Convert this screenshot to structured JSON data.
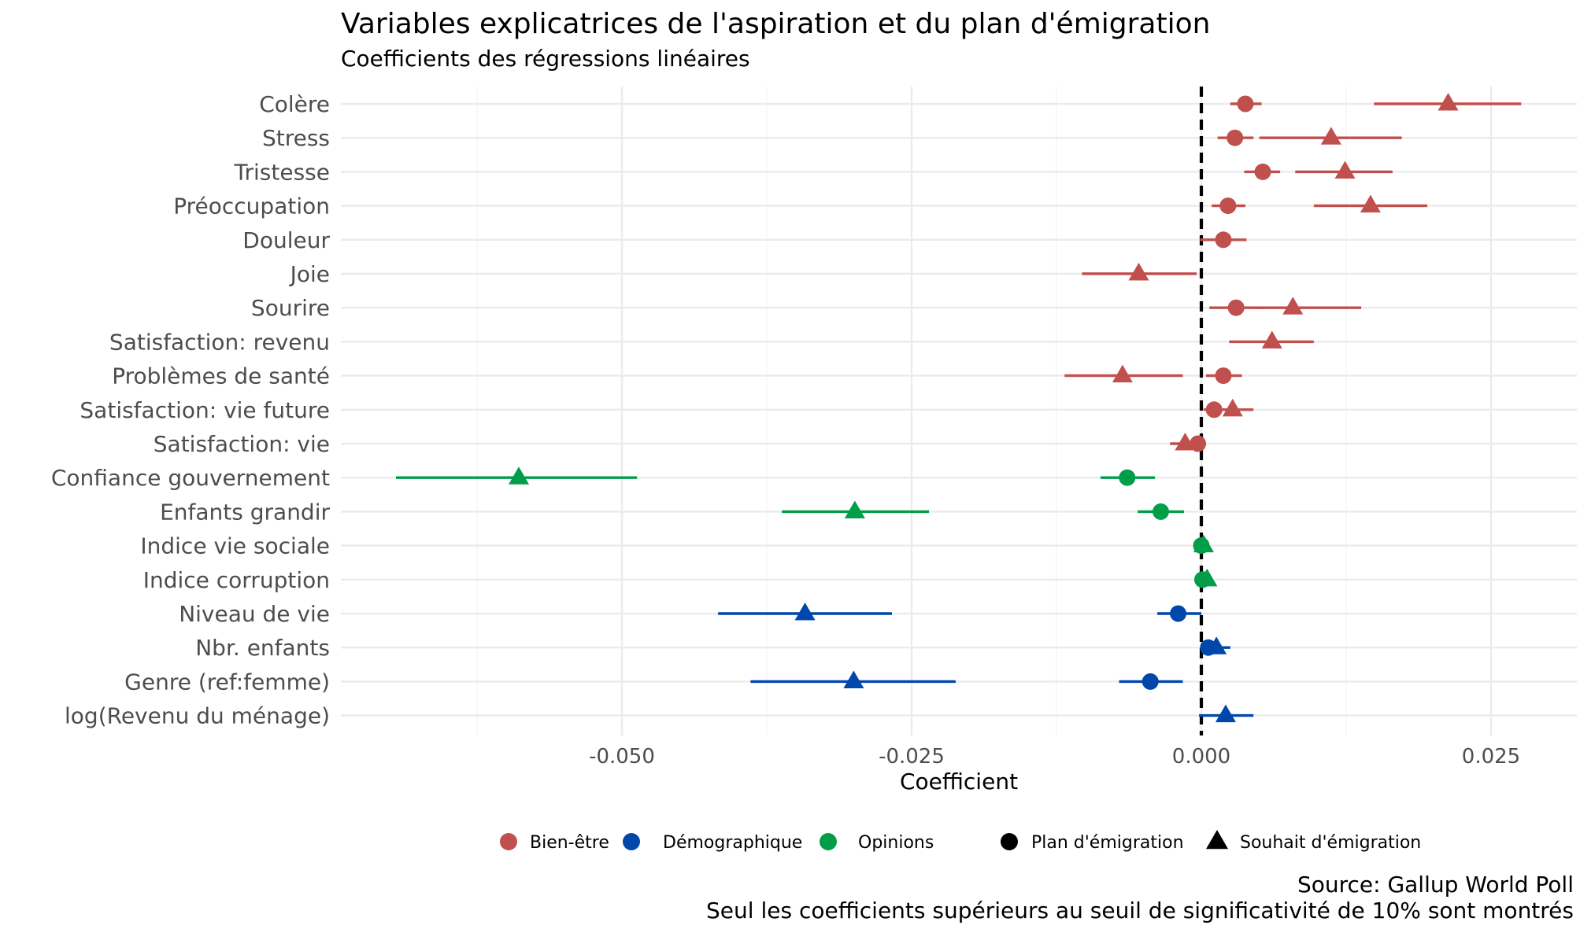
{
  "chart_data": {
    "type": "scatter",
    "subtype": "coefficient-plot",
    "title": "Variables explicatrices de l'aspiration et du plan d'émigration",
    "subtitle": "Coefficients des régressions linéaires",
    "xlabel": "Coefficient",
    "ylabel": "",
    "xlim": [
      -0.0745,
      0.033
    ],
    "xticks": [
      -0.05,
      -0.025,
      0.0,
      0.025
    ],
    "xtick_labels": [
      "-0.050",
      "-0.025",
      "0.000",
      "0.025"
    ],
    "reference_line": 0.0,
    "grid": true,
    "legend_position": "bottom",
    "categories": [
      "Colère",
      "Stress",
      "Tristesse",
      "Préoccupation",
      "Douleur",
      "Joie",
      "Sourire",
      "Satisfaction: revenu",
      "Problèmes de santé ",
      "Satisfaction: vie future",
      "Satisfaction: vie",
      "Confiance gouvernement",
      "Enfants grandir",
      "Indice vie sociale",
      "Indice corruption",
      "Niveau de vie",
      "Nbr. enfants",
      "Genre (ref:femme)",
      "log(Revenu du ménage)"
    ],
    "groups": [
      {
        "name": "Bien-être",
        "color": "#C0504D"
      },
      {
        "name": "Démographique",
        "color": "#0047AB"
      },
      {
        "name": "Opinions",
        "color": "#009E49"
      }
    ],
    "shapes": [
      {
        "name": "Plan d'émigration",
        "shape": "circle"
      },
      {
        "name": "Souhait d'émigration",
        "shape": "triangle"
      }
    ],
    "points": [
      {
        "variable": "Colère",
        "group": "Bien-être",
        "model": "Plan d'émigration",
        "estimate": 0.0038,
        "lo": 0.0025,
        "hi": 0.0052
      },
      {
        "variable": "Colère",
        "group": "Bien-être",
        "model": "Souhait d'émigration",
        "estimate": 0.0213,
        "lo": 0.0149,
        "hi": 0.0276
      },
      {
        "variable": "Stress",
        "group": "Bien-être",
        "model": "Plan d'émigration",
        "estimate": 0.0029,
        "lo": 0.0014,
        "hi": 0.0045
      },
      {
        "variable": "Stress",
        "group": "Bien-être",
        "model": "Souhait d'émigration",
        "estimate": 0.0112,
        "lo": 0.005,
        "hi": 0.0173
      },
      {
        "variable": "Tristesse",
        "group": "Bien-être",
        "model": "Plan d'émigration",
        "estimate": 0.0053,
        "lo": 0.0037,
        "hi": 0.0068
      },
      {
        "variable": "Tristesse",
        "group": "Bien-être",
        "model": "Souhait d'émigration",
        "estimate": 0.0124,
        "lo": 0.0081,
        "hi": 0.0165
      },
      {
        "variable": "Préoccupation",
        "group": "Bien-être",
        "model": "Plan d'émigration",
        "estimate": 0.0023,
        "lo": 0.0009,
        "hi": 0.0038
      },
      {
        "variable": "Préoccupation",
        "group": "Bien-être",
        "model": "Souhait d'émigration",
        "estimate": 0.0146,
        "lo": 0.0097,
        "hi": 0.0195
      },
      {
        "variable": "Douleur",
        "group": "Bien-être",
        "model": "Plan d'émigration",
        "estimate": 0.0019,
        "lo": -0.0001,
        "hi": 0.0039
      },
      {
        "variable": "Joie",
        "group": "Bien-être",
        "model": "Souhait d'émigration",
        "estimate": -0.0054,
        "lo": -0.0103,
        "hi": -0.0004
      },
      {
        "variable": "Sourire",
        "group": "Bien-être",
        "model": "Plan d'émigration",
        "estimate": 0.003,
        "lo": 0.0007,
        "hi": 0.0053
      },
      {
        "variable": "Sourire",
        "group": "Bien-être",
        "model": "Souhait d'émigration",
        "estimate": 0.0079,
        "lo": 0.0045,
        "hi": 0.0138
      },
      {
        "variable": "Satisfaction: revenu",
        "group": "Bien-être",
        "model": "Souhait d'émigration",
        "estimate": 0.0061,
        "lo": 0.0024,
        "hi": 0.0097
      },
      {
        "variable": "Problèmes de santé ",
        "group": "Bien-être",
        "model": "Plan d'émigration",
        "estimate": 0.0019,
        "lo": 0.0004,
        "hi": 0.0035
      },
      {
        "variable": "Problèmes de santé ",
        "group": "Bien-être",
        "model": "Souhait d'émigration",
        "estimate": -0.0068,
        "lo": -0.0118,
        "hi": -0.0016
      },
      {
        "variable": "Satisfaction: vie future",
        "group": "Bien-être",
        "model": "Plan d'émigration",
        "estimate": 0.0011,
        "lo": 0.0002,
        "hi": 0.002
      },
      {
        "variable": "Satisfaction: vie future",
        "group": "Bien-être",
        "model": "Souhait d'émigration",
        "estimate": 0.0027,
        "lo": 0.0007,
        "hi": 0.0045
      },
      {
        "variable": "Satisfaction: vie",
        "group": "Bien-être",
        "model": "Plan d'émigration",
        "estimate": -0.0003,
        "lo": -0.0007,
        "hi": 0.0001
      },
      {
        "variable": "Satisfaction: vie",
        "group": "Bien-être",
        "model": "Souhait d'émigration",
        "estimate": -0.0014,
        "lo": -0.0027,
        "hi": 0.0
      },
      {
        "variable": "Confiance gouvernement",
        "group": "Opinions",
        "model": "Plan d'émigration",
        "estimate": -0.0064,
        "lo": -0.0087,
        "hi": -0.004
      },
      {
        "variable": "Confiance gouvernement",
        "group": "Opinions",
        "model": "Souhait d'émigration",
        "estimate": -0.0589,
        "lo": -0.0695,
        "hi": -0.0487
      },
      {
        "variable": "Enfants grandir",
        "group": "Opinions",
        "model": "Plan d'émigration",
        "estimate": -0.0035,
        "lo": -0.0055,
        "hi": -0.0015
      },
      {
        "variable": "Enfants grandir",
        "group": "Opinions",
        "model": "Souhait d'émigration",
        "estimate": -0.0299,
        "lo": -0.0362,
        "hi": -0.0235
      },
      {
        "variable": "Indice vie sociale",
        "group": "Opinions",
        "model": "Plan d'émigration",
        "estimate": 0.0,
        "lo": -0.0003,
        "hi": 0.0003
      },
      {
        "variable": "Indice vie sociale",
        "group": "Opinions",
        "model": "Souhait d'émigration",
        "estimate": 0.0002,
        "lo": -0.0001,
        "hi": 0.0005
      },
      {
        "variable": "Indice corruption",
        "group": "Opinions",
        "model": "Plan d'émigration",
        "estimate": 0.0001,
        "lo": -0.0001,
        "hi": 0.0003
      },
      {
        "variable": "Indice corruption",
        "group": "Opinions",
        "model": "Souhait d'émigration",
        "estimate": 0.0005,
        "lo": 0.0002,
        "hi": 0.0008
      },
      {
        "variable": "Niveau de vie",
        "group": "Démographique",
        "model": "Plan d'émigration",
        "estimate": -0.002,
        "lo": -0.0038,
        "hi": 0.0
      },
      {
        "variable": "Niveau de vie",
        "group": "Démographique",
        "model": "Souhait d'émigration",
        "estimate": -0.0342,
        "lo": -0.0417,
        "hi": -0.0267
      },
      {
        "variable": "Nbr. enfants",
        "group": "Démographique",
        "model": "Plan d'émigration",
        "estimate": 0.0006,
        "lo": 0.0001,
        "hi": 0.0011
      },
      {
        "variable": "Nbr. enfants",
        "group": "Démographique",
        "model": "Souhait d'émigration",
        "estimate": 0.0013,
        "lo": 0.0003,
        "hi": 0.0025
      },
      {
        "variable": "Genre (ref:femme)",
        "group": "Démographique",
        "model": "Plan d'émigration",
        "estimate": -0.0044,
        "lo": -0.0071,
        "hi": -0.0016
      },
      {
        "variable": "Genre (ref:femme)",
        "group": "Démographique",
        "model": "Souhait d'émigration",
        "estimate": -0.03,
        "lo": -0.0389,
        "hi": -0.0212
      },
      {
        "variable": "log(Revenu du ménage)",
        "group": "Démographique",
        "model": "Souhait d'émigration",
        "estimate": 0.0021,
        "lo": -0.0002,
        "hi": 0.0045
      }
    ]
  },
  "caption": {
    "line1": "Source: Gallup World Poll",
    "line2": "Seul les coefficients supérieurs au seuil de significativité de 10% sont montrés"
  }
}
